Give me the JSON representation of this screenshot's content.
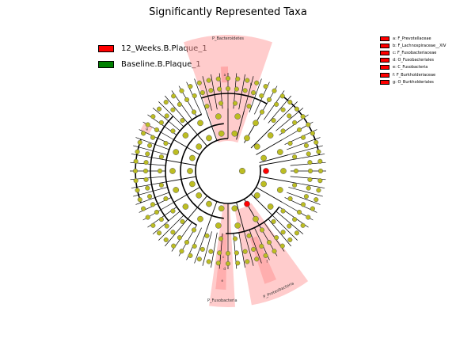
{
  "title": "Significantly Represented Taxa",
  "legend_groups": [
    {
      "label": "12_Weeks.B.Plaque_1",
      "color": "#ff0000"
    },
    {
      "label": "Baseline.B.Plaque_1",
      "color": "#008000"
    }
  ],
  "legend_taxa": [
    {
      "label": "a: F_Prevotellaceae"
    },
    {
      "label": "b: F_Lachnospiraceae__XIV"
    },
    {
      "label": "c: F_Fusobacteriaceae"
    },
    {
      "label": "d: O_Fusobacteriales"
    },
    {
      "label": "e: C_Fusobacteria"
    },
    {
      "label": "f: F_Burkholderiaceae"
    },
    {
      "label": "g: O_Burkholderiales"
    }
  ],
  "colors": {
    "node_default": "#bcbd22",
    "node_enriched": "#ff0000",
    "node_baseline": "#008000",
    "highlight": "#ff9999"
  },
  "sectors": [
    {
      "label": "P_Bacteroidetes"
    },
    {
      "label": "P_Fusobacteria"
    },
    {
      "label": "P_Proteobacteria"
    }
  ],
  "marker_letters": [
    "a",
    "b",
    "c",
    "d",
    "e",
    "f",
    "g"
  ]
}
